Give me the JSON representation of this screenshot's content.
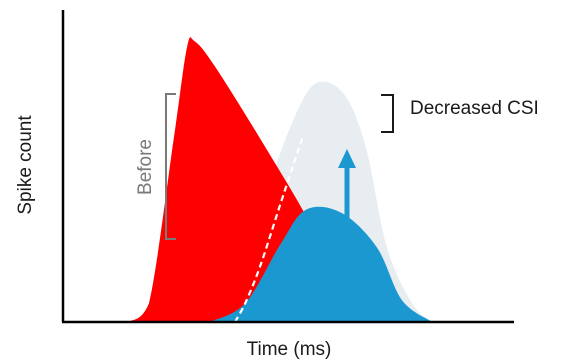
{
  "chart_data": {
    "type": "area",
    "title": "",
    "xlabel": "Time (ms)",
    "ylabel": "Spike count",
    "grid": false,
    "legend": "none",
    "annotations": {
      "before_label": "Before",
      "decreased_label": "Decreased CSI"
    },
    "series": [
      {
        "id": "before",
        "color": "#ff0000",
        "x": [
          0.13,
          0.17,
          0.22,
          0.245,
          0.26,
          0.3,
          0.4,
          0.5,
          0.575
        ],
        "y": [
          0.0,
          0.06,
          0.6,
          0.88,
          0.9,
          0.82,
          0.56,
          0.28,
          0.0
        ]
      },
      {
        "id": "after",
        "color": "#1b98d0",
        "x": [
          0.29,
          0.36,
          0.43,
          0.48,
          0.55,
          0.62,
          0.67,
          0.73
        ],
        "y": [
          0.0,
          0.06,
          0.25,
          0.36,
          0.35,
          0.24,
          0.07,
          0.0
        ]
      },
      {
        "id": "increased",
        "color": "#e8edf2",
        "x": [
          0.29,
          0.35,
          0.41,
          0.47,
          0.51,
          0.56,
          0.6,
          0.64,
          0.69,
          0.73
        ],
        "y": [
          0.0,
          0.1,
          0.45,
          0.7,
          0.77,
          0.72,
          0.55,
          0.24,
          0.06,
          0.0
        ]
      }
    ],
    "dashed_overlap": {
      "x": [
        0.34,
        0.36,
        0.39,
        0.43,
        0.475
      ],
      "y": [
        0.0,
        0.06,
        0.18,
        0.38,
        0.6
      ]
    },
    "colors": {
      "arrow": "#1b98d0",
      "bracket_before": "#7a7a7a",
      "bracket_decreased": "#1a1a1a"
    }
  }
}
